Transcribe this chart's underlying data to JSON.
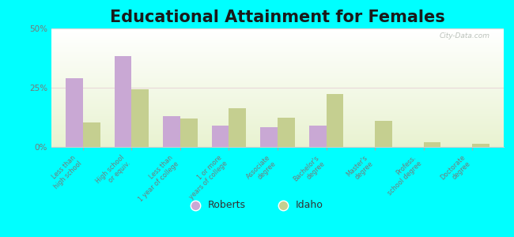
{
  "title": "Educational Attainment for Females",
  "categories": [
    "Less than\nhigh school",
    "High school\nor equiv.",
    "Less than\n1 year of college",
    "1 or more\nyears of college",
    "Associate\ndegree",
    "Bachelor's\ndegree",
    "Master's\ndegree",
    "Profess.\nschool degree",
    "Doctorate\ndegree"
  ],
  "roberts": [
    29.0,
    38.5,
    13.0,
    9.0,
    8.5,
    9.0,
    0.0,
    0.0,
    0.0
  ],
  "idaho": [
    10.5,
    24.5,
    12.0,
    16.5,
    12.5,
    22.5,
    11.0,
    2.0,
    1.5
  ],
  "roberts_color": "#c9a8d4",
  "idaho_color": "#c5cf90",
  "bg_bottom": "#f5f8e0",
  "bg_top": "#ffffff",
  "outer_bg": "#00ffff",
  "ylim": [
    0,
    50
  ],
  "yticks": [
    0,
    25,
    50
  ],
  "ytick_labels": [
    "0%",
    "25%",
    "50%"
  ],
  "title_fontsize": 15,
  "legend_labels": [
    "Roberts",
    "Idaho"
  ],
  "watermark": "City-Data.com",
  "tick_color": "#777777",
  "grid_color": "#dddddd"
}
